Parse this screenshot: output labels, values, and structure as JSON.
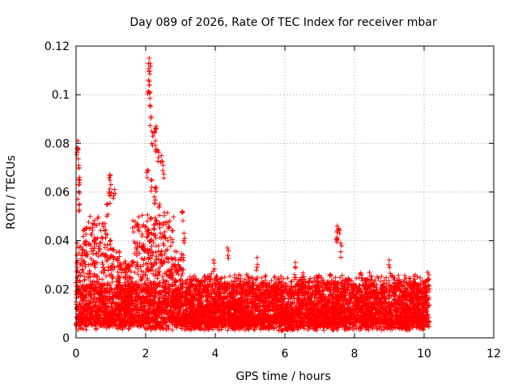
{
  "chart_data": {
    "type": "scatter",
    "title": "Day 089 of 2026, Rate Of TEC Index for receiver mbar",
    "xlabel": "GPS time / hours",
    "ylabel": "ROTI / TECUs",
    "xlim": [
      0,
      12
    ],
    "ylim": [
      0,
      0.12
    ],
    "xticks": [
      0,
      2,
      4,
      6,
      8,
      10,
      12
    ],
    "yticks": [
      0,
      0.02,
      0.04,
      0.06,
      0.08,
      0.1,
      0.12
    ],
    "ytick_labels": [
      "0",
      "0.02",
      "0.04",
      "0.06",
      "0.08",
      "0.1",
      "0.12"
    ],
    "xtick_labels": [
      "0",
      "2",
      "4",
      "6",
      "8",
      "10",
      "12"
    ],
    "grid": true,
    "marker": "+",
    "color": "#ff0000",
    "series": [
      {
        "name": "ROTI",
        "data_coverage_hours": [
          0,
          10.15
        ],
        "typical_band": [
          0.005,
          0.025
        ],
        "notable_points": [
          {
            "x": 0.05,
            "y": 0.081
          },
          {
            "x": 0.05,
            "y": 0.078
          },
          {
            "x": 0.08,
            "y": 0.071
          },
          {
            "x": 0.1,
            "y": 0.066
          },
          {
            "x": 0.08,
            "y": 0.063
          },
          {
            "x": 0.1,
            "y": 0.055
          },
          {
            "x": 0.97,
            "y": 0.067
          },
          {
            "x": 1.0,
            "y": 0.063
          },
          {
            "x": 0.95,
            "y": 0.06
          },
          {
            "x": 1.1,
            "y": 0.061
          },
          {
            "x": 0.9,
            "y": 0.055
          },
          {
            "x": 2.1,
            "y": 0.115
          },
          {
            "x": 2.12,
            "y": 0.113
          },
          {
            "x": 2.08,
            "y": 0.106
          },
          {
            "x": 2.1,
            "y": 0.104
          },
          {
            "x": 2.12,
            "y": 0.101
          },
          {
            "x": 2.15,
            "y": 0.091
          },
          {
            "x": 2.3,
            "y": 0.087
          },
          {
            "x": 2.25,
            "y": 0.085
          },
          {
            "x": 2.2,
            "y": 0.083
          },
          {
            "x": 2.28,
            "y": 0.081
          },
          {
            "x": 2.35,
            "y": 0.077
          },
          {
            "x": 2.45,
            "y": 0.075
          },
          {
            "x": 2.05,
            "y": 0.069
          },
          {
            "x": 2.15,
            "y": 0.065
          },
          {
            "x": 2.3,
            "y": 0.062
          },
          {
            "x": 2.25,
            "y": 0.058
          },
          {
            "x": 2.4,
            "y": 0.055
          },
          {
            "x": 2.5,
            "y": 0.071
          },
          {
            "x": 3.05,
            "y": 0.052
          },
          {
            "x": 3.1,
            "y": 0.043
          },
          {
            "x": 3.95,
            "y": 0.032
          },
          {
            "x": 4.35,
            "y": 0.037
          },
          {
            "x": 5.2,
            "y": 0.033
          },
          {
            "x": 6.3,
            "y": 0.031
          },
          {
            "x": 7.5,
            "y": 0.046
          },
          {
            "x": 7.55,
            "y": 0.045
          },
          {
            "x": 7.5,
            "y": 0.044
          },
          {
            "x": 7.6,
            "y": 0.039
          },
          {
            "x": 9.0,
            "y": 0.032
          },
          {
            "x": 10.1,
            "y": 0.027
          }
        ]
      }
    ]
  }
}
